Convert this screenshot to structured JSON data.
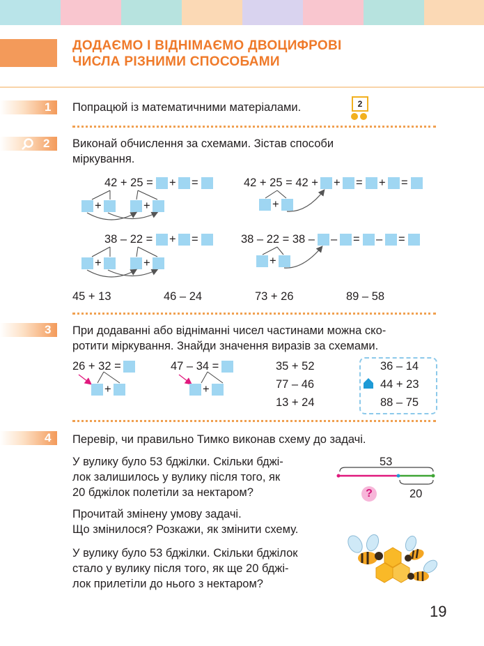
{
  "header": {
    "title_line1": "ДОДАЄМО І ВІДНІМАЄМО ДВОЦИФРОВІ",
    "title_line2": "ЧИСЛА РІЗНИМИ СПОСОБАМИ",
    "stripe_colors": [
      "#b9e4e9",
      "#f9c6cf",
      "#b7e3df",
      "#fbd9b5",
      "#d9d3ef",
      "#f9c6cf",
      "#b7e3df",
      "#fbd9b5"
    ]
  },
  "task1": {
    "number": "1",
    "text": "Попрацюй із математичними матеріалами.",
    "badge": "2"
  },
  "task2": {
    "number": "2",
    "icon": "magnifier-icon",
    "text_line1": "Виконай обчислення за схемами. Зістав способи",
    "text_line2": "міркування.",
    "scheme_a_top": "42 + 25 =",
    "scheme_b_top": "42 + 25 = 42 +",
    "scheme_c_top": "38 – 22 =",
    "scheme_d_top": "38 – 22 = 38 –",
    "plus": "+",
    "minus": "–",
    "equals": "=",
    "exercises": [
      "45 + 13",
      "46 – 24",
      "73 + 26",
      "89 – 58"
    ]
  },
  "task3": {
    "number": "3",
    "text_line1": "При додаванні або відніманні чисел частинами можна ско-",
    "text_line2": "ротити міркування. Знайди значення виразів за схемами.",
    "scheme_a": "26 + 32 =",
    "scheme_b": "47 – 34 =",
    "column1": [
      "35 + 52",
      "77 – 46",
      "13 + 24"
    ],
    "column2": [
      "36 – 14",
      "44 + 23",
      "88 – 75"
    ]
  },
  "task4": {
    "number": "4",
    "intro": "Перевір, чи правильно Тимко виконав схему до задачі.",
    "problem1": [
      "У вулику було 53 бджілки. Скільки бджі-",
      "лок залишилось у вулику після того, як",
      "20 бджілок полетіли за нектаром?"
    ],
    "diagram_total": "53",
    "diagram_part": "20",
    "diagram_unknown": "?",
    "changed": [
      "Прочитай змінену умову задачі.",
      "Що змінилося? Розкажи, як змінити схему."
    ],
    "problem2": [
      "У вулику було 53 бджілки. Скільки бджілок",
      "стало у вулику після того, як ще 20 бджі-",
      "лок прилетіли до нього з нектаром?"
    ]
  },
  "page_number": "19"
}
